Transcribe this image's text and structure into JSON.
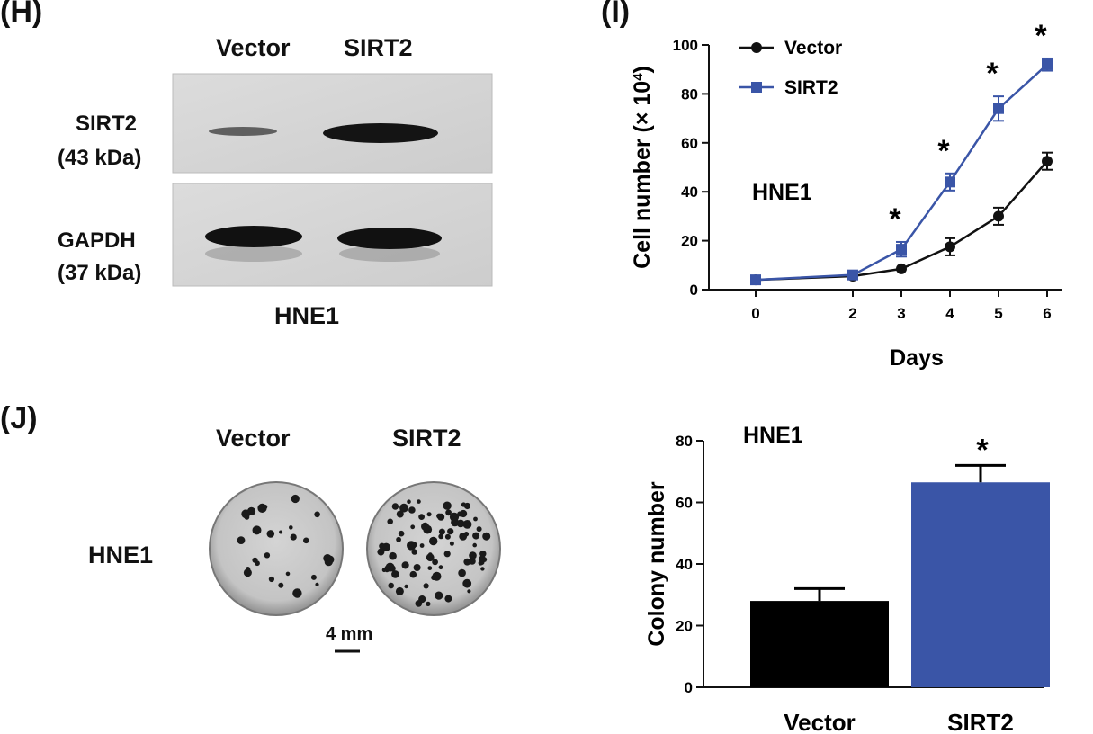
{
  "panel_labels": {
    "h": "(H)",
    "i": "(I)",
    "j": "(J)"
  },
  "western_blot": {
    "lanes": [
      "Vector",
      "SIRT2"
    ],
    "row1_label": "SIRT2",
    "row1_kda": "(43 kDa)",
    "row2_label": "GAPDH",
    "row2_kda": "(37 kDa)",
    "cell_line": "HNE1"
  },
  "colony_images": {
    "lanes": [
      "Vector",
      "SIRT2"
    ],
    "row_label": "HNE1",
    "scale_bar": "4 mm"
  },
  "chart_data": [
    {
      "type": "line",
      "annotation": "HNE1",
      "xlabel": "Days",
      "ylabel": "Cell number (× 10",
      "ylabel_sup": "4",
      "ylabel_close": ")",
      "x": [
        0,
        2,
        3,
        4,
        5,
        6
      ],
      "xticks": [
        "0",
        "2",
        "3",
        "4",
        "5",
        "6"
      ],
      "ylim": [
        0,
        100
      ],
      "yticks": [
        "0",
        "20",
        "40",
        "60",
        "80",
        "100"
      ],
      "legend_position": "top-left",
      "series": [
        {
          "name": "Vector",
          "color": "#111111",
          "marker": "circle",
          "values": [
            4,
            5.5,
            8.5,
            17.5,
            30,
            52.5
          ],
          "errors": [
            1,
            1,
            1,
            3.5,
            3.5,
            3.5
          ]
        },
        {
          "name": "SIRT2",
          "color": "#3a55a7",
          "marker": "square",
          "values": [
            4,
            6,
            16.5,
            44,
            74,
            92
          ],
          "errors": [
            1,
            1,
            3,
            3.5,
            5,
            2.5
          ]
        }
      ],
      "significance": [
        "",
        "",
        "*",
        "*",
        "*",
        "*"
      ]
    },
    {
      "type": "bar",
      "annotation": "HNE1",
      "categories": [
        "Vector",
        "SIRT2"
      ],
      "values": [
        28,
        66.5
      ],
      "errors": [
        4,
        5.5
      ],
      "colors": [
        "#000000",
        "#3a55a7"
      ],
      "ylabel": "Colony number",
      "ylim": [
        0,
        80
      ],
      "yticks": [
        "0",
        "20",
        "40",
        "60",
        "80"
      ],
      "significance": [
        "",
        "*"
      ]
    }
  ]
}
